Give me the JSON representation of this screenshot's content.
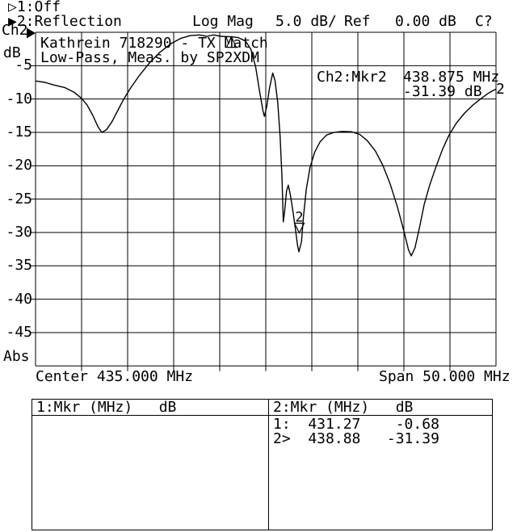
{
  "header": {
    "channel1_status": "▷1:Off",
    "channel2_status": "▶2:Reflection",
    "format": "Log Mag",
    "scale": "5.0 dB/",
    "ref_label": "Ref",
    "ref_value": "0.00 dB",
    "cal_status": "C?"
  },
  "left_axis": {
    "channel": "Ch2",
    "unit": "dB",
    "abs_label": "Abs",
    "ticks": [
      "-5",
      "-10",
      "-15",
      "-20",
      "-25",
      "-30",
      "-35",
      "-40",
      "-45"
    ]
  },
  "title": {
    "line1": "Kathrein 718290 - TX Match",
    "line2": "Low-Pass, Meas. by SP2XDM"
  },
  "readout": {
    "channel_marker": "Ch2:Mkr2",
    "freq": "438.875 MHz",
    "level": "-31.39 dB",
    "trace_number": "2"
  },
  "bottom_axis": {
    "center": "Center 435.000 MHz",
    "span": "Span 50.000 MHz"
  },
  "marker_table": {
    "left_header": "1:Mkr (MHz)   dB",
    "right_header": "2:Mkr (MHz)   dB",
    "left_rows": [],
    "right_rows": [
      "1:  431.27    -0.68",
      "2>  438.88   -31.39"
    ]
  },
  "chart_data": {
    "type": "line",
    "title": "Kathrein 718290 - TX Match / Low-Pass, Meas. by SP2XDM",
    "xlabel": "Frequency (MHz), Center 435.000 MHz, Span 50.000 MHz",
    "ylabel": "Reflection Log Mag (dB), 5.0 dB/div, Ref 0.00 dB",
    "x_range": [
      410,
      460
    ],
    "y_range": [
      -50,
      0
    ],
    "center_mhz": 435.0,
    "span_mhz": 50.0,
    "db_per_div": 5.0,
    "ref_db": 0.0,
    "grid": true,
    "markers": [
      {
        "id": "1",
        "freq_mhz": 431.27,
        "db": -0.68,
        "active": false
      },
      {
        "id": "2",
        "freq_mhz": 438.88,
        "db": -31.39,
        "active": true
      }
    ],
    "points": [
      [
        410.0,
        -7.3
      ],
      [
        411.0,
        -7.5
      ],
      [
        412.0,
        -7.9
      ],
      [
        413.2,
        -8.3
      ],
      [
        414.2,
        -9.0
      ],
      [
        415.0,
        -9.9
      ],
      [
        415.6,
        -10.9
      ],
      [
        416.2,
        -12.4
      ],
      [
        416.8,
        -14.2
      ],
      [
        417.2,
        -15.0
      ],
      [
        417.7,
        -14.6
      ],
      [
        418.3,
        -13.4
      ],
      [
        418.9,
        -11.8
      ],
      [
        419.5,
        -10.2
      ],
      [
        420.3,
        -8.4
      ],
      [
        421.2,
        -6.6
      ],
      [
        422.3,
        -4.7
      ],
      [
        423.5,
        -3.0
      ],
      [
        424.7,
        -1.7
      ],
      [
        425.8,
        -0.9
      ],
      [
        426.8,
        -0.5
      ],
      [
        427.8,
        -0.4
      ],
      [
        428.6,
        -0.6
      ],
      [
        429.3,
        -0.4
      ],
      [
        430.2,
        -0.6
      ],
      [
        431.27,
        -0.68
      ],
      [
        432.0,
        -0.8
      ],
      [
        432.8,
        -1.3
      ],
      [
        433.4,
        -2.6
      ],
      [
        433.9,
        -5.2
      ],
      [
        434.3,
        -8.6
      ],
      [
        434.7,
        -11.8
      ],
      [
        434.85,
        -12.6
      ],
      [
        435.1,
        -11.2
      ],
      [
        435.4,
        -8.4
      ],
      [
        435.75,
        -6.1
      ],
      [
        436.0,
        -7.2
      ],
      [
        436.3,
        -10.5
      ],
      [
        436.55,
        -15.5
      ],
      [
        436.75,
        -21.5
      ],
      [
        436.9,
        -28.4
      ],
      [
        437.05,
        -26.8
      ],
      [
        437.25,
        -23.8
      ],
      [
        437.45,
        -22.9
      ],
      [
        437.7,
        -24.6
      ],
      [
        437.95,
        -26.8
      ],
      [
        438.2,
        -29.3
      ],
      [
        438.45,
        -31.9
      ],
      [
        438.6,
        -32.9
      ],
      [
        438.88,
        -31.39
      ],
      [
        439.1,
        -27.6
      ],
      [
        439.4,
        -23.5
      ],
      [
        439.8,
        -20.3
      ],
      [
        440.3,
        -18.0
      ],
      [
        440.9,
        -16.4
      ],
      [
        441.6,
        -15.4
      ],
      [
        442.4,
        -15.0
      ],
      [
        443.3,
        -14.85
      ],
      [
        444.3,
        -14.9
      ],
      [
        445.2,
        -15.3
      ],
      [
        446.0,
        -16.2
      ],
      [
        446.9,
        -17.8
      ],
      [
        447.7,
        -19.9
      ],
      [
        448.5,
        -22.7
      ],
      [
        449.3,
        -26.2
      ],
      [
        450.0,
        -29.8
      ],
      [
        450.5,
        -32.6
      ],
      [
        450.8,
        -33.5
      ],
      [
        451.2,
        -32.3
      ],
      [
        451.7,
        -29.2
      ],
      [
        452.2,
        -25.8
      ],
      [
        452.8,
        -22.9
      ],
      [
        453.5,
        -20.1
      ],
      [
        454.2,
        -17.5
      ],
      [
        454.9,
        -15.4
      ],
      [
        455.7,
        -13.6
      ],
      [
        456.6,
        -12.1
      ],
      [
        457.5,
        -10.9
      ],
      [
        458.4,
        -9.9
      ],
      [
        459.2,
        -9.1
      ],
      [
        460.0,
        -8.5
      ]
    ]
  },
  "colors": {
    "foreground": "#000000",
    "background": "#ffffff"
  }
}
